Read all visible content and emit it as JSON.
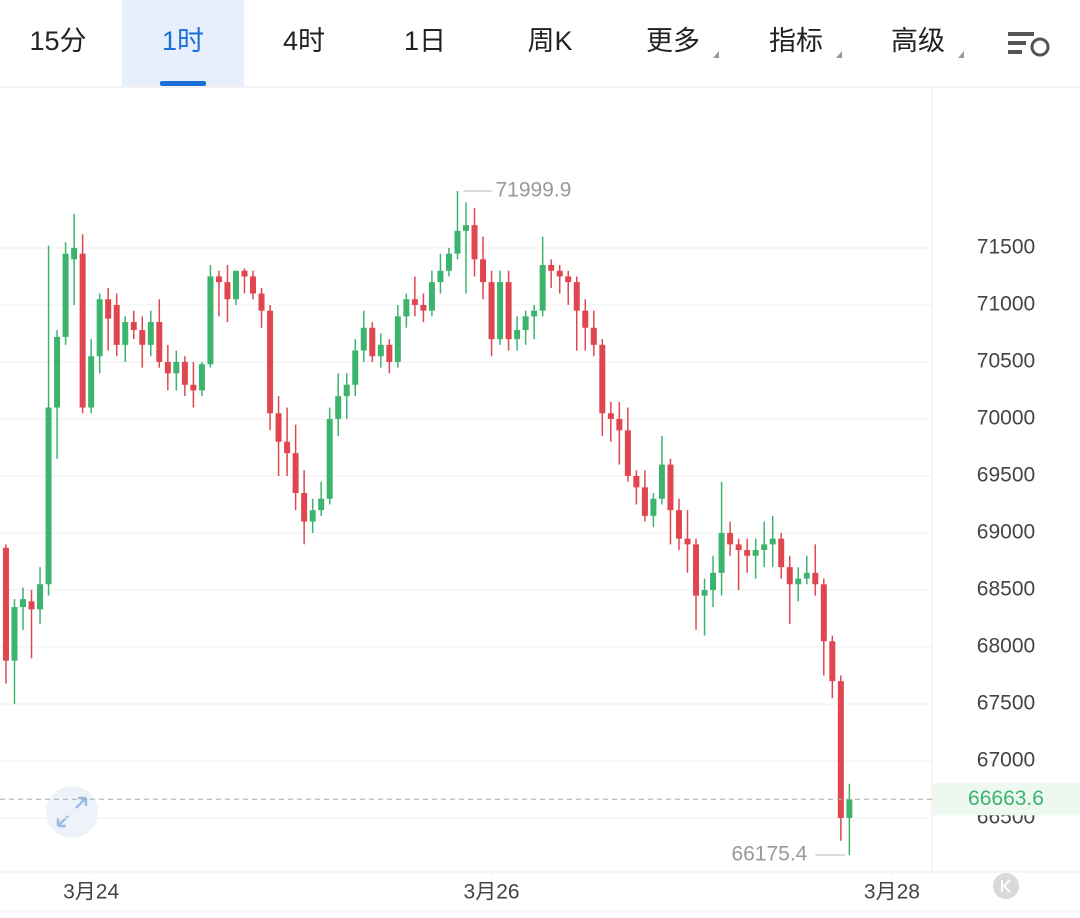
{
  "tabs": [
    "15分",
    "1时",
    "4时",
    "1日",
    "周K",
    "更多",
    "指标",
    "高级"
  ],
  "chart_data": {
    "type": "candlestick",
    "up_color": "#3cb46e",
    "down_color": "#e0464f",
    "open": [
      68870,
      67880,
      68350,
      68400,
      68330,
      68550,
      70100,
      70720,
      71400,
      71450,
      70100,
      70550,
      71050,
      71000,
      70650,
      70850,
      70780,
      70650,
      70850,
      70500,
      70400,
      70500,
      70300,
      70250,
      70480,
      71250,
      71200,
      71050,
      71300,
      71250,
      71100,
      70950,
      70050,
      69800,
      69700,
      69350,
      69100,
      69200,
      69300,
      70000,
      70200,
      70300,
      70600,
      70800,
      70550,
      70650,
      70500,
      70900,
      71050,
      71000,
      70950,
      71200,
      71300,
      71450,
      71650,
      71700,
      71400,
      71200,
      70700,
      71200,
      70700,
      70780,
      70900,
      70950,
      71350,
      71300,
      71250,
      71200,
      70950,
      70800,
      70650,
      70050,
      70000,
      69900,
      69500,
      69400,
      69150,
      69300,
      69600,
      69200,
      68950,
      68900,
      68450,
      68500,
      68650,
      69000,
      68900,
      68850,
      68800,
      68850,
      68900,
      68950,
      68700,
      68550,
      68600,
      68650,
      68550,
      68050,
      67700,
      66500
    ],
    "high": [
      68900,
      68420,
      68520,
      68500,
      68700,
      71520,
      70780,
      71550,
      71800,
      71620,
      70700,
      71100,
      71150,
      71100,
      70900,
      70950,
      70900,
      70950,
      71050,
      70650,
      70600,
      70550,
      70500,
      70500,
      71350,
      71300,
      71350,
      71300,
      71320,
      71300,
      71150,
      71000,
      70200,
      70100,
      69950,
      69550,
      69300,
      69450,
      70100,
      70400,
      70400,
      70700,
      70950,
      70850,
      70750,
      70700,
      71000,
      71100,
      71250,
      71100,
      71300,
      71450,
      71500,
      71999.9,
      71900,
      71850,
      71600,
      71300,
      71300,
      71300,
      70900,
      70950,
      71000,
      71600,
      71400,
      71350,
      71300,
      71250,
      71050,
      70950,
      70700,
      70150,
      70150,
      70100,
      69550,
      69550,
      69350,
      69850,
      69650,
      69300,
      69200,
      68950,
      68600,
      68800,
      69450,
      69100,
      68950,
      68950,
      68950,
      69100,
      69150,
      69000,
      68800,
      68700,
      68800,
      68900,
      68600,
      68100,
      67750,
      66800
    ],
    "low": [
      67680,
      67500,
      68150,
      67900,
      68200,
      68450,
      69650,
      70650,
      71000,
      70050,
      70050,
      70400,
      70600,
      70550,
      70500,
      70700,
      70450,
      70550,
      70450,
      70250,
      70250,
      70200,
      70100,
      70200,
      70450,
      70900,
      70850,
      71000,
      71100,
      71050,
      70800,
      69900,
      69500,
      69500,
      69200,
      68900,
      69000,
      69150,
      69250,
      69850,
      70000,
      70200,
      70500,
      70500,
      70450,
      70400,
      70450,
      70800,
      70900,
      70850,
      70900,
      71100,
      71250,
      71400,
      71100,
      71250,
      71050,
      70550,
      70650,
      70600,
      70600,
      70650,
      70700,
      70900,
      71150,
      71100,
      71000,
      70600,
      70600,
      70550,
      69850,
      69800,
      69600,
      69450,
      69250,
      69100,
      69050,
      69250,
      68900,
      68850,
      68650,
      68150,
      68100,
      68350,
      68450,
      68800,
      68500,
      68650,
      68600,
      68700,
      68700,
      68600,
      68200,
      68400,
      68550,
      68450,
      67750,
      67550,
      66300,
      66175.4
    ],
    "close": [
      67880,
      68350,
      68420,
      68330,
      68550,
      70100,
      70720,
      71450,
      71500,
      70100,
      70550,
      71050,
      70880,
      70650,
      70850,
      70780,
      70650,
      70850,
      70500,
      70400,
      70500,
      70300,
      70250,
      70480,
      71250,
      71200,
      71050,
      71300,
      71250,
      71100,
      70950,
      70050,
      69800,
      69700,
      69350,
      69100,
      69200,
      69300,
      70000,
      70200,
      70300,
      70600,
      70800,
      70550,
      70650,
      70500,
      70900,
      71050,
      71000,
      70950,
      71200,
      71300,
      71450,
      71650,
      71700,
      71400,
      71200,
      70700,
      71200,
      70700,
      70780,
      70900,
      70950,
      71350,
      71300,
      71250,
      71200,
      70950,
      70800,
      70650,
      70050,
      70000,
      69900,
      69500,
      69400,
      69150,
      69300,
      69600,
      69200,
      68950,
      68900,
      68450,
      68500,
      68650,
      69000,
      68900,
      68850,
      68800,
      68850,
      68900,
      68950,
      68700,
      68550,
      68600,
      68650,
      68550,
      68050,
      67700,
      66500,
      66663.6
    ],
    "xlim": [
      -0.7,
      108.7
    ],
    "xticks": [
      {
        "value": 10,
        "label": "3月24"
      },
      {
        "value": 57,
        "label": "3月26"
      },
      {
        "value": 104,
        "label": "3月28"
      }
    ],
    "ylim": [
      66026,
      72903
    ],
    "yticks": [
      66500,
      67000,
      67500,
      68000,
      68500,
      69000,
      69500,
      70000,
      70500,
      71000,
      71500
    ],
    "grid": true
  }
}
